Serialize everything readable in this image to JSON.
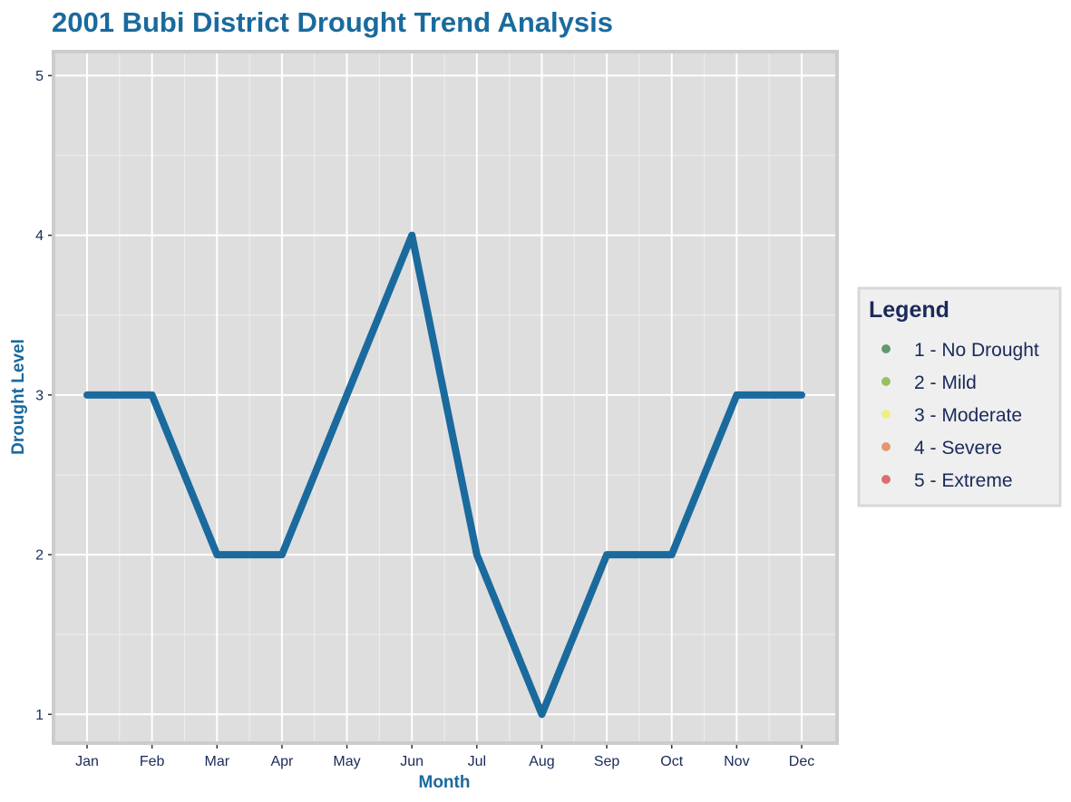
{
  "chart_data": {
    "type": "line",
    "title": "2001 Bubi District Drought Trend Analysis",
    "xlabel": "Month",
    "ylabel": "Drought Level",
    "categories": [
      "Jan",
      "Feb",
      "Mar",
      "Apr",
      "May",
      "Jun",
      "Jul",
      "Aug",
      "Sep",
      "Oct",
      "Nov",
      "Dec"
    ],
    "series": [
      {
        "values": [
          3,
          3,
          2,
          2,
          3,
          4,
          2,
          1,
          2,
          2,
          3,
          3
        ],
        "color": "#1a6a9e"
      }
    ],
    "y_ticks": [
      "1",
      "2",
      "3",
      "4",
      "5"
    ],
    "ylim": [
      0.82,
      5.15
    ],
    "grid": true,
    "legend": {
      "title": "Legend",
      "placement": "right",
      "items": [
        {
          "label": "1 - No Drought",
          "color": "#4a8a5a"
        },
        {
          "label": "2 - Mild",
          "color": "#8ab84a"
        },
        {
          "label": "3 - Moderate",
          "color": "#f0f070"
        },
        {
          "label": "4 - Severe",
          "color": "#e08858"
        },
        {
          "label": "5 - Extreme",
          "color": "#d85858"
        }
      ]
    },
    "colors": {
      "title": "#1a6a9e",
      "axis_title": "#1a6a9e",
      "tick_label": "#1a2a5a",
      "panel_background": "#dedede",
      "panel_border": "#cccccc",
      "grid_major": "#ffffff",
      "grid_minor": "#ececec",
      "legend_background": "#efefef",
      "legend_border": "#d8d8d8",
      "legend_text": "#1a2a5a"
    }
  }
}
